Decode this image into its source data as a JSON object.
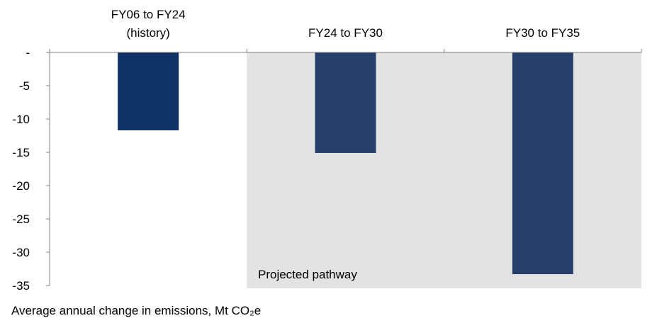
{
  "chart_data": {
    "type": "bar",
    "categories": [
      [
        "FY06 to FY24",
        "(history)"
      ],
      [
        "FY24 to FY30"
      ],
      [
        "FY30 to FY35"
      ]
    ],
    "values": [
      -11.7,
      -15.1,
      -33.3
    ],
    "ylim": [
      -35,
      0
    ],
    "yticks": [
      0,
      -5,
      -10,
      -15,
      -20,
      -25,
      -30,
      -35
    ],
    "ytick_labels": [
      "-",
      "-5",
      "-10",
      "-15",
      "-20",
      "-25",
      "-30",
      "-35"
    ],
    "ylabel": "Average annual change in emissions, Mt CO₂e",
    "annotation": "Projected pathway",
    "projected_from_category": 1,
    "grid": false,
    "colors": {
      "history_bar": "#0f3166",
      "projected_bar": "#263f6b",
      "projected_shade": "#e3e3e3",
      "axis": "#808080"
    }
  }
}
